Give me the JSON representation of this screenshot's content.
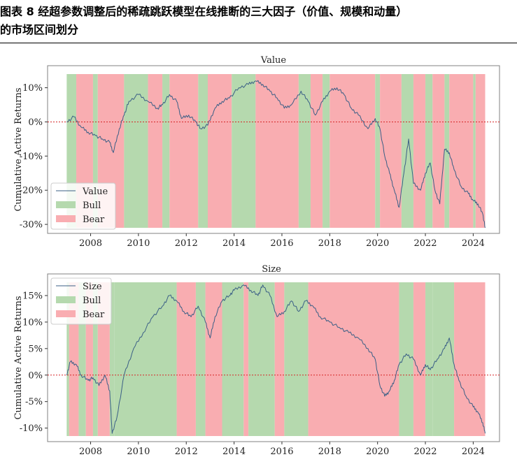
{
  "figure": {
    "caption_line1": "图表 8 经超参数调整后的稀疏跳跃模型在线推断的三大因子（价值、规模和动量）",
    "caption_line2": "的市场区间划分"
  },
  "colors": {
    "bull": "#b5d9ae",
    "bear": "#f9adb1",
    "line": "#3b5f86",
    "zero": "#d62728"
  },
  "chart_data": [
    {
      "type": "line",
      "title": "Value",
      "ylabel": "Cumulative Active Returns",
      "ylim": [
        -31,
        14
      ],
      "xlim": [
        2006.2,
        2025.1
      ],
      "yticks": [
        10,
        0,
        -10,
        -20,
        -30
      ],
      "ytick_labels": [
        "10%",
        "0%",
        "-10%",
        "-20%",
        "-30%"
      ],
      "xticks": [
        2008,
        2010,
        2012,
        2014,
        2016,
        2018,
        2020,
        2022,
        2024
      ],
      "xtick_labels": [
        "2008",
        "2010",
        "2012",
        "2014",
        "2016",
        "2018",
        "2020",
        "2022",
        "2024"
      ],
      "legend": {
        "placement": "lower-left",
        "entries": [
          "Value",
          "Bull",
          "Bear"
        ]
      },
      "regimes": [
        {
          "start": 2007.0,
          "end": 2007.4,
          "regime": "Bull"
        },
        {
          "start": 2007.4,
          "end": 2008.1,
          "regime": "Bear"
        },
        {
          "start": 2008.1,
          "end": 2008.3,
          "regime": "Bull"
        },
        {
          "start": 2008.3,
          "end": 2009.4,
          "regime": "Bear"
        },
        {
          "start": 2009.4,
          "end": 2010.4,
          "regime": "Bull"
        },
        {
          "start": 2010.4,
          "end": 2011.0,
          "regime": "Bear"
        },
        {
          "start": 2011.0,
          "end": 2011.3,
          "regime": "Bull"
        },
        {
          "start": 2011.3,
          "end": 2012.5,
          "regime": "Bear"
        },
        {
          "start": 2012.5,
          "end": 2012.9,
          "regime": "Bull"
        },
        {
          "start": 2012.9,
          "end": 2013.9,
          "regime": "Bear"
        },
        {
          "start": 2013.9,
          "end": 2014.9,
          "regime": "Bull"
        },
        {
          "start": 2014.9,
          "end": 2016.7,
          "regime": "Bear"
        },
        {
          "start": 2016.7,
          "end": 2017.2,
          "regime": "Bull"
        },
        {
          "start": 2017.2,
          "end": 2017.7,
          "regime": "Bear"
        },
        {
          "start": 2017.7,
          "end": 2018.0,
          "regime": "Bull"
        },
        {
          "start": 2018.0,
          "end": 2019.9,
          "regime": "Bear"
        },
        {
          "start": 2019.9,
          "end": 2020.1,
          "regime": "Bull"
        },
        {
          "start": 2020.1,
          "end": 2021.0,
          "regime": "Bear"
        },
        {
          "start": 2021.0,
          "end": 2021.5,
          "regime": "Bull"
        },
        {
          "start": 2021.5,
          "end": 2022.0,
          "regime": "Bear"
        },
        {
          "start": 2022.0,
          "end": 2022.3,
          "regime": "Bull"
        },
        {
          "start": 2022.3,
          "end": 2022.8,
          "regime": "Bear"
        },
        {
          "start": 2022.8,
          "end": 2023.0,
          "regime": "Bull"
        },
        {
          "start": 2023.0,
          "end": 2024.0,
          "regime": "Bear"
        },
        {
          "start": 2024.0,
          "end": 2024.1,
          "regime": "Bull"
        },
        {
          "start": 2024.1,
          "end": 2024.5,
          "regime": "Bear"
        }
      ],
      "series": [
        {
          "name": "Value",
          "x": [
            2007.0,
            2007.3,
            2007.6,
            2007.9,
            2008.2,
            2008.5,
            2008.8,
            2008.95,
            2009.2,
            2009.4,
            2009.6,
            2010.0,
            2010.4,
            2010.8,
            2011.0,
            2011.3,
            2011.6,
            2011.8,
            2012.1,
            2012.4,
            2012.6,
            2012.9,
            2013.2,
            2013.5,
            2013.8,
            2014.2,
            2014.6,
            2014.9,
            2015.2,
            2015.5,
            2015.8,
            2016.1,
            2016.4,
            2016.8,
            2017.1,
            2017.4,
            2017.7,
            2018.0,
            2018.3,
            2018.6,
            2018.9,
            2019.2,
            2019.6,
            2019.9,
            2020.1,
            2020.3,
            2020.5,
            2020.7,
            2020.9,
            2021.1,
            2021.3,
            2021.5,
            2021.8,
            2022.0,
            2022.2,
            2022.4,
            2022.6,
            2022.8,
            2023.0,
            2023.2,
            2023.5,
            2023.8,
            2024.0,
            2024.2,
            2024.4,
            2024.5
          ],
          "y": [
            0,
            1.5,
            -1.5,
            -3,
            -4,
            -5,
            -6,
            -9,
            -2,
            2,
            6,
            8,
            6,
            4,
            5,
            8,
            6,
            1,
            2,
            0,
            -2,
            -1,
            4,
            6,
            7,
            10,
            11,
            12,
            11,
            9,
            7,
            4,
            5,
            9,
            6,
            2,
            6,
            9,
            10,
            8,
            4,
            2,
            -2,
            1,
            -2,
            -10,
            -15,
            -20,
            -25,
            -15,
            -5,
            -18,
            -20,
            -15,
            -12,
            -20,
            -24,
            -8,
            -9,
            -14,
            -19,
            -21,
            -23,
            -24,
            -27,
            -31
          ]
        }
      ]
    },
    {
      "type": "line",
      "title": "Size",
      "ylabel": "Cumulative Active Returns",
      "ylim": [
        -11.5,
        17.5
      ],
      "xlim": [
        2006.2,
        2025.1
      ],
      "yticks": [
        15,
        10,
        5,
        0,
        -5,
        -10
      ],
      "ytick_labels": [
        "15%",
        "10%",
        "5%",
        "0%",
        "-5%",
        "-10%"
      ],
      "xticks": [
        2008,
        2010,
        2012,
        2014,
        2016,
        2018,
        2020,
        2022,
        2024
      ],
      "xtick_labels": [
        "2008",
        "2010",
        "2012",
        "2014",
        "2016",
        "2018",
        "2020",
        "2022",
        "2024"
      ],
      "legend": {
        "placement": "upper-left",
        "entries": [
          "Size",
          "Bull",
          "Bear"
        ]
      },
      "regimes": [
        {
          "start": 2007.0,
          "end": 2007.1,
          "regime": "Bull"
        },
        {
          "start": 2007.1,
          "end": 2007.5,
          "regime": "Bear"
        },
        {
          "start": 2007.5,
          "end": 2007.8,
          "regime": "Bull"
        },
        {
          "start": 2007.8,
          "end": 2008.1,
          "regime": "Bear"
        },
        {
          "start": 2008.1,
          "end": 2008.3,
          "regime": "Bull"
        },
        {
          "start": 2008.3,
          "end": 2008.8,
          "regime": "Bear"
        },
        {
          "start": 2008.8,
          "end": 2009.0,
          "regime": "Bull"
        },
        {
          "start": 2009.0,
          "end": 2011.6,
          "regime": "Bull"
        },
        {
          "start": 2011.6,
          "end": 2012.4,
          "regime": "Bear"
        },
        {
          "start": 2012.4,
          "end": 2012.8,
          "regime": "Bull"
        },
        {
          "start": 2012.8,
          "end": 2013.5,
          "regime": "Bear"
        },
        {
          "start": 2013.5,
          "end": 2014.4,
          "regime": "Bull"
        },
        {
          "start": 2014.4,
          "end": 2014.6,
          "regime": "Bear"
        },
        {
          "start": 2014.6,
          "end": 2015.7,
          "regime": "Bull"
        },
        {
          "start": 2015.7,
          "end": 2016.1,
          "regime": "Bear"
        },
        {
          "start": 2016.1,
          "end": 2017.1,
          "regime": "Bull"
        },
        {
          "start": 2017.1,
          "end": 2020.9,
          "regime": "Bear"
        },
        {
          "start": 2020.9,
          "end": 2021.5,
          "regime": "Bull"
        },
        {
          "start": 2021.5,
          "end": 2022.0,
          "regime": "Bear"
        },
        {
          "start": 2022.0,
          "end": 2022.3,
          "regime": "Bull"
        },
        {
          "start": 2022.3,
          "end": 2023.2,
          "regime": "Bull"
        },
        {
          "start": 2023.2,
          "end": 2024.5,
          "regime": "Bear"
        }
      ],
      "series": [
        {
          "name": "Size",
          "x": [
            2007.0,
            2007.15,
            2007.4,
            2007.6,
            2007.9,
            2008.1,
            2008.35,
            2008.6,
            2008.8,
            2008.9,
            2009.1,
            2009.4,
            2009.8,
            2010.2,
            2010.6,
            2011.0,
            2011.3,
            2011.6,
            2011.9,
            2012.2,
            2012.5,
            2012.8,
            2013.0,
            2013.2,
            2013.5,
            2013.8,
            2014.0,
            2014.4,
            2014.7,
            2015.0,
            2015.2,
            2015.5,
            2015.8,
            2016.1,
            2016.4,
            2016.7,
            2017.0,
            2017.3,
            2017.6,
            2018.0,
            2018.4,
            2018.8,
            2019.2,
            2019.6,
            2019.9,
            2020.1,
            2020.3,
            2020.5,
            2020.7,
            2020.9,
            2021.2,
            2021.5,
            2021.8,
            2022.0,
            2022.2,
            2022.5,
            2022.8,
            2023.0,
            2023.2,
            2023.4,
            2023.7,
            2024.0,
            2024.2,
            2024.4,
            2024.5
          ],
          "y": [
            0,
            2.5,
            2,
            0,
            -1,
            -0.5,
            -2,
            0,
            -3,
            -11,
            -8,
            0,
            5,
            8,
            11,
            13,
            15,
            14,
            12,
            11,
            13,
            10,
            7,
            11,
            14,
            15,
            16,
            17,
            16,
            15,
            17,
            15,
            11,
            12,
            14,
            12,
            14,
            13,
            11,
            10,
            9,
            8,
            7,
            5,
            3,
            -2,
            -4,
            -3,
            -1,
            2,
            4,
            3,
            0,
            2,
            1,
            3,
            5,
            7,
            2,
            -1,
            -4,
            -6,
            -7,
            -9,
            -11
          ]
        }
      ]
    }
  ]
}
